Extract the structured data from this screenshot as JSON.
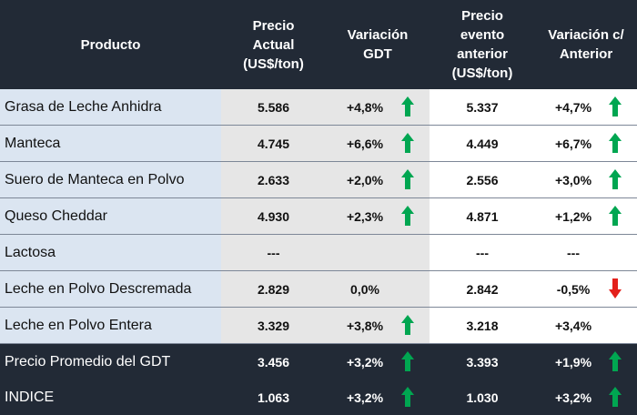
{
  "table": {
    "header": [
      [
        "Producto"
      ],
      [
        "Precio",
        "Actual",
        "(US$/ton)"
      ],
      [
        "Variación",
        "GDT"
      ],
      [
        "Precio",
        "evento",
        "anterior",
        "(US$/ton)"
      ],
      [
        "Variación c/",
        "Anterior"
      ]
    ],
    "rows": [
      [
        "Grasa de Leche Anhidra",
        "5.586",
        "+4,8%",
        "5.337",
        "+4,7%"
      ],
      [
        "Manteca",
        "4.745",
        "+6,6%",
        "4.449",
        "+6,7%"
      ],
      [
        "Suero de Manteca en Polvo",
        "2.633",
        "+2,0%",
        "2.556",
        "+3,0%"
      ],
      [
        "Queso Cheddar",
        "4.930",
        "+2,3%",
        "4.871",
        "+1,2%"
      ],
      [
        "Lactosa",
        "---",
        null,
        "---",
        "---"
      ],
      [
        "Leche en Polvo Descremada",
        "2.829",
        "0,0%",
        "2.842",
        "-0,5%"
      ],
      [
        "Leche en Polvo Entera",
        "3.329",
        "+3,8%",
        "3.218",
        "+3,4%"
      ],
      [
        "Precio Promedio del GDT",
        "3.456",
        "+3,2%",
        "3.393",
        "+1,9%"
      ],
      [
        "INDICE",
        "1.063",
        "+3,2%",
        "1.030",
        "+3,2%"
      ]
    ]
  }
}
